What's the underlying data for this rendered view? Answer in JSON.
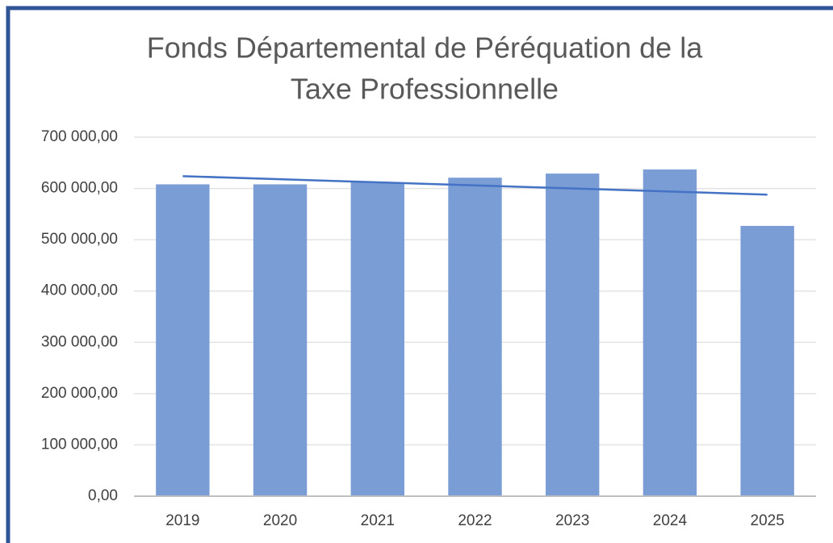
{
  "chart_data": {
    "type": "bar",
    "title": [
      "Fonds Départemental de Péréquation de la",
      "Taxe Professionnelle"
    ],
    "categories": [
      "2019",
      "2020",
      "2021",
      "2022",
      "2023",
      "2024",
      "2025"
    ],
    "values": [
      608000,
      608000,
      612000,
      621000,
      629000,
      637000,
      527000
    ],
    "color": "#7b9dd6",
    "trendline": "linear",
    "trendline_color": "#4472c4",
    "ylim": [
      0,
      700000
    ],
    "yticks": [
      {
        "value": 0,
        "label": "0,00"
      },
      {
        "value": 100000,
        "label": "100 000,00"
      },
      {
        "value": 200000,
        "label": "200 000,00"
      },
      {
        "value": 300000,
        "label": "300 000,00"
      },
      {
        "value": 400000,
        "label": "400 000,00"
      },
      {
        "value": 500000,
        "label": "500 000,00"
      },
      {
        "value": 600000,
        "label": "600 000,00"
      },
      {
        "value": 700000,
        "label": "700 000,00"
      }
    ],
    "grid": true
  }
}
